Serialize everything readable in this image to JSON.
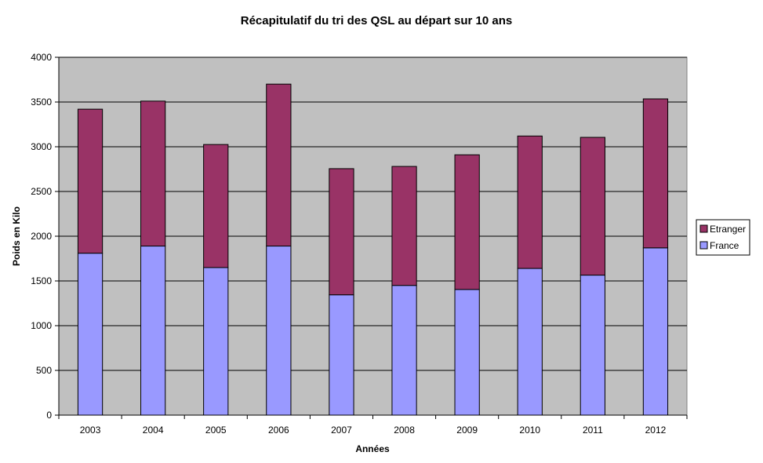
{
  "chart_data": {
    "type": "bar",
    "stacked": true,
    "title": "Récapitulatif du tri des QSL au départ sur 10 ans",
    "xlabel": "Années",
    "ylabel": "Poids en Kilo",
    "categories": [
      "2003",
      "2004",
      "2005",
      "2006",
      "2007",
      "2008",
      "2009",
      "2010",
      "2011",
      "2012"
    ],
    "series": [
      {
        "name": "France",
        "color": "#9999ff",
        "values": [
          1810,
          1890,
          1650,
          1890,
          1345,
          1450,
          1405,
          1640,
          1565,
          1870
        ]
      },
      {
        "name": "Etranger",
        "color": "#993366",
        "values": [
          1610,
          1620,
          1375,
          1810,
          1410,
          1330,
          1505,
          1480,
          1540,
          1665
        ]
      }
    ],
    "ylim": [
      0,
      4000
    ],
    "yticks": [
      "0",
      "500",
      "1000",
      "1500",
      "2000",
      "2500",
      "3000",
      "3500",
      "4000"
    ],
    "grid": true,
    "legend_position": "right",
    "plot_background": "#c0c0c0"
  }
}
